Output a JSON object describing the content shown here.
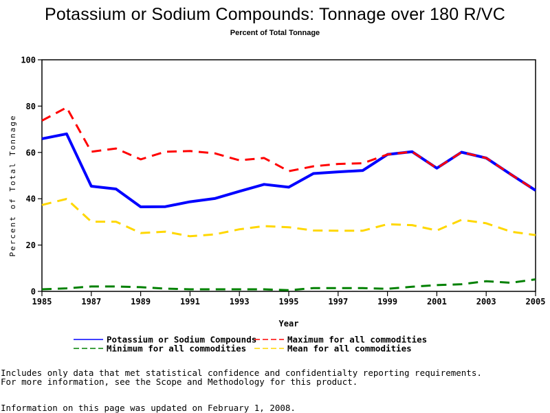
{
  "chart_data": {
    "type": "line",
    "title": "Potassium or Sodium Compounds: Tonnage over 180 R/VC",
    "subtitle": "Percent of Total Tonnage",
    "xlabel": "Year",
    "ylabel": "Percent of Total Tonnage",
    "xlim": [
      1985,
      2005
    ],
    "ylim": [
      0,
      100
    ],
    "x_ticks": [
      "1985",
      "1987",
      "1989",
      "1991",
      "1993",
      "1995",
      "1997",
      "1999",
      "2001",
      "2003",
      "2005"
    ],
    "y_ticks": [
      "0",
      "20",
      "40",
      "60",
      "80",
      "100"
    ],
    "grid": false,
    "legend_position": "bottom",
    "x": [
      1985,
      1986,
      1987,
      1988,
      1989,
      1990,
      1991,
      1992,
      1993,
      1994,
      1995,
      1996,
      1997,
      1998,
      1999,
      2000,
      2001,
      2002,
      2003,
      2004,
      2005
    ],
    "series": [
      {
        "name": "Potassium or Sodium Compounds",
        "color": "#0000ff",
        "style": "solid",
        "values": [
          65.9,
          68.0,
          45.4,
          44.2,
          36.5,
          36.6,
          38.7,
          40.1,
          43.2,
          46.2,
          45.0,
          50.9,
          51.6,
          52.2,
          59.1,
          60.3,
          53.2,
          60.1,
          57.6,
          50.5,
          43.6
        ]
      },
      {
        "name": "Maximum for all commodities",
        "color": "#ff0000",
        "style": "dashed",
        "values": [
          73.7,
          79.4,
          60.3,
          61.7,
          57.0,
          60.3,
          60.6,
          59.6,
          56.6,
          57.6,
          51.9,
          54.0,
          55.0,
          55.3,
          59.1,
          60.3,
          53.2,
          60.1,
          57.6,
          50.5,
          43.6
        ]
      },
      {
        "name": "Minimum for all commodities",
        "color": "#008000",
        "style": "dashed",
        "values": [
          0.9,
          1.3,
          2.1,
          2.1,
          1.8,
          1.2,
          0.9,
          0.9,
          0.9,
          0.9,
          0.5,
          1.4,
          1.4,
          1.4,
          1.1,
          2.0,
          2.7,
          3.1,
          4.4,
          3.7,
          5.2
        ]
      },
      {
        "name": "Mean for all commodities",
        "color": "#ffd700",
        "style": "dashed",
        "values": [
          37.3,
          39.9,
          30.1,
          30.1,
          25.2,
          25.8,
          23.8,
          24.6,
          26.8,
          28.2,
          27.7,
          26.3,
          26.2,
          26.2,
          29.0,
          28.6,
          26.3,
          30.9,
          29.4,
          25.8,
          24.3
        ]
      }
    ]
  },
  "notes": {
    "line1": "Includes only data that met statistical confidence and confidentialty reporting requirements.",
    "line2": "For more information, see the Scope and Methodology for this product.",
    "updated": "Information on this page was updated on February 1, 2008."
  }
}
